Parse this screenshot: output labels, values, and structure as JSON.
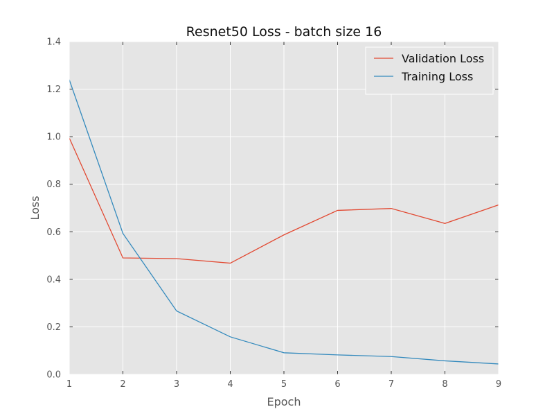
{
  "chart_data": {
    "type": "line",
    "title": "Resnet50 Loss - batch size 16",
    "xlabel": "Epoch",
    "ylabel": "Loss",
    "x": [
      1,
      2,
      3,
      4,
      5,
      6,
      7,
      8,
      9
    ],
    "xlim": [
      1,
      9
    ],
    "ylim": [
      0.0,
      1.4
    ],
    "xticks": [
      1,
      2,
      3,
      4,
      5,
      6,
      7,
      8,
      9
    ],
    "yticks": [
      0.0,
      0.2,
      0.4,
      0.6,
      0.8,
      1.0,
      1.2,
      1.4
    ],
    "ytick_labels": [
      "0.0",
      "0.2",
      "0.4",
      "0.6",
      "0.8",
      "1.0",
      "1.2",
      "1.4"
    ],
    "grid": true,
    "legend_position": "top-right",
    "background_color": "#e5e5e5",
    "series": [
      {
        "name": "Validation Loss",
        "color": "#e24a33",
        "values": [
          0.995,
          0.49,
          0.487,
          0.468,
          0.587,
          0.69,
          0.698,
          0.635,
          0.713
        ]
      },
      {
        "name": "Training Loss",
        "color": "#348abd",
        "values": [
          1.24,
          0.593,
          0.267,
          0.158,
          0.091,
          0.082,
          0.075,
          0.057,
          0.044
        ]
      }
    ]
  }
}
